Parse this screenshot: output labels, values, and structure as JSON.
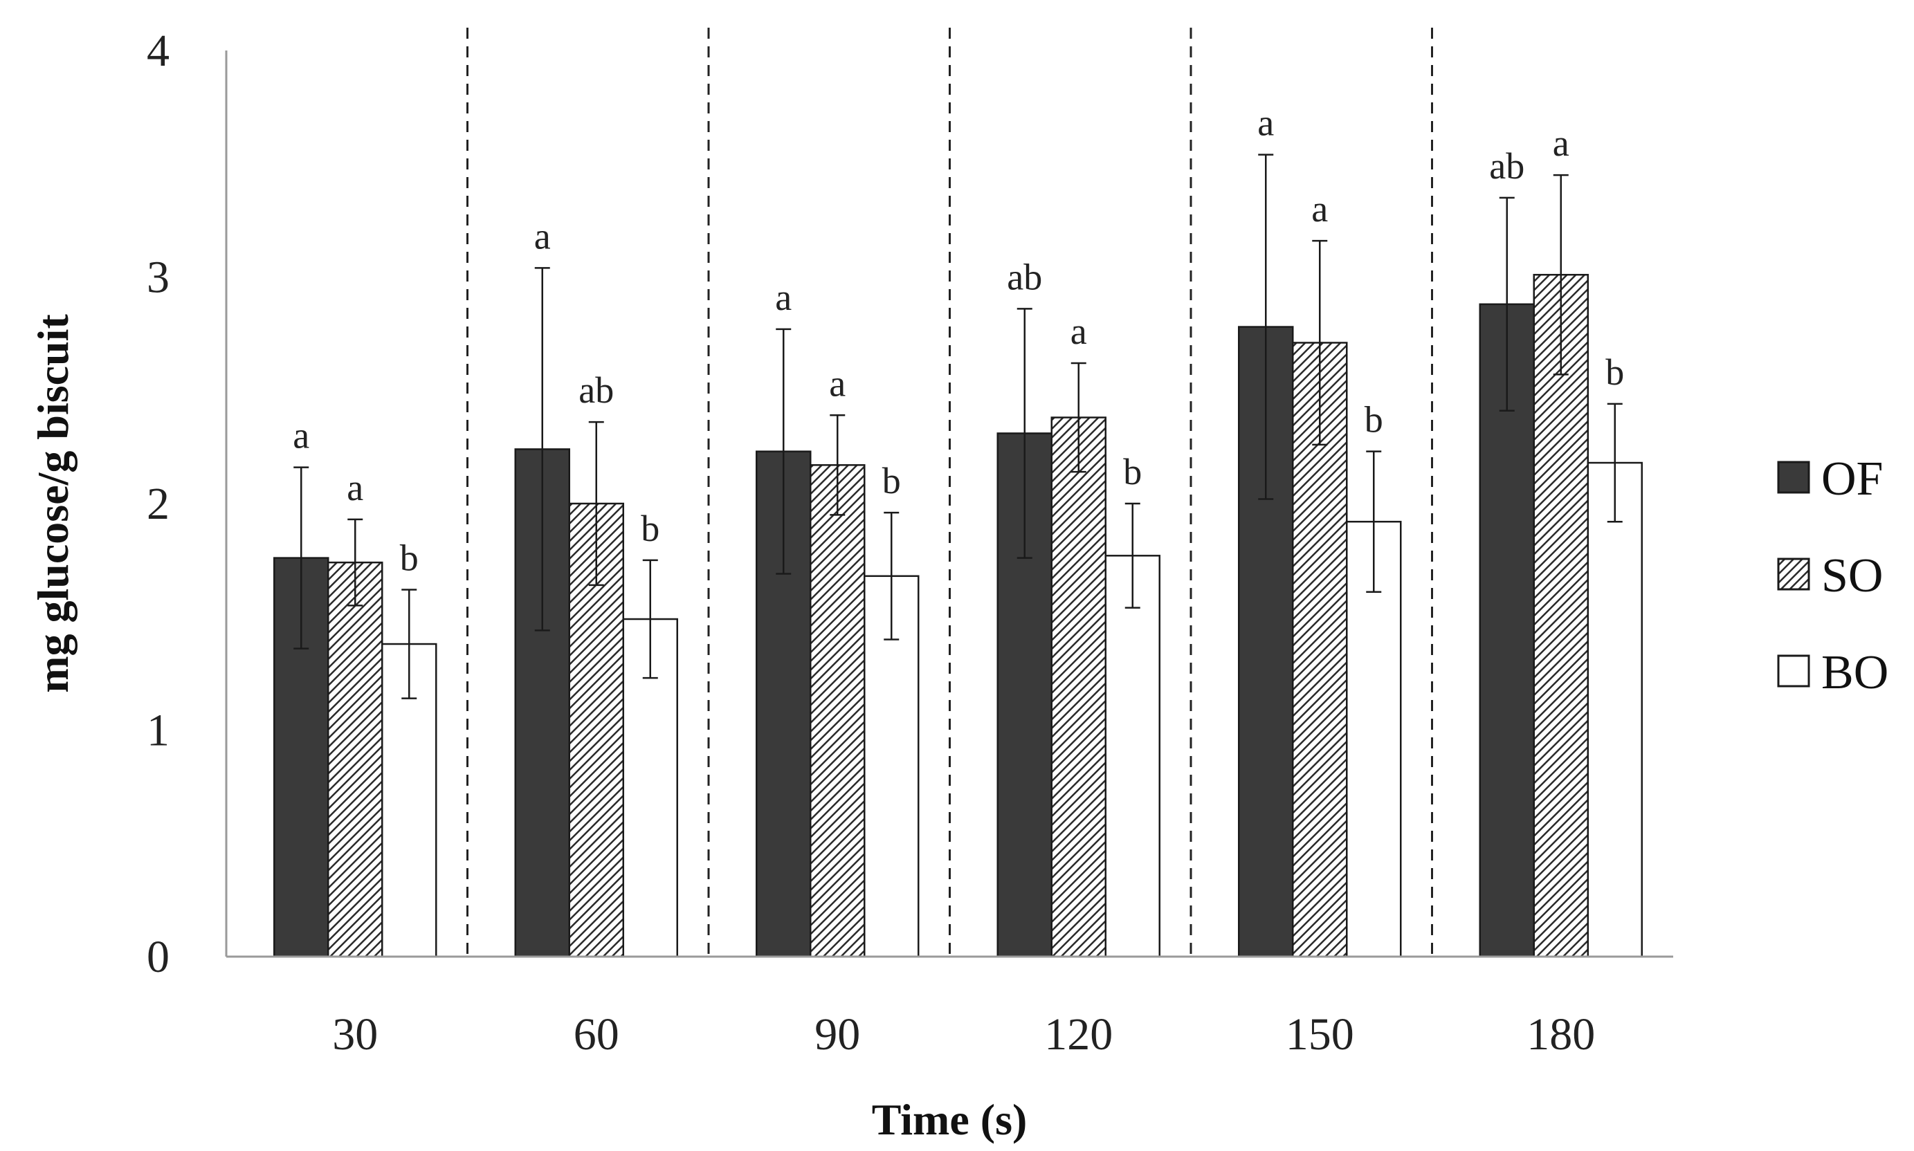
{
  "chart_data": {
    "type": "bar",
    "title": "",
    "xlabel": "Time (s)",
    "ylabel": "mg glucose/g biscuit",
    "ylim": [
      0,
      4
    ],
    "yticks": [
      "0",
      "1",
      "2",
      "3",
      "4"
    ],
    "categories": [
      "30",
      "60",
      "90",
      "120",
      "150",
      "180"
    ],
    "grid": false,
    "group_separators": "dashed",
    "legend_position": "right",
    "series": [
      {
        "name": "OF",
        "fill": "solid",
        "color": "#3a3a3a",
        "values": [
          1.76,
          2.24,
          2.23,
          2.31,
          2.78,
          2.88
        ],
        "errors": [
          0.4,
          0.8,
          0.54,
          0.55,
          0.76,
          0.47
        ],
        "labels": [
          "a",
          "a",
          "a",
          "ab",
          "a",
          "ab"
        ]
      },
      {
        "name": "SO",
        "fill": "hatched",
        "color": "#3a3a3a",
        "values": [
          1.74,
          2.0,
          2.17,
          2.38,
          2.71,
          3.01
        ],
        "errors": [
          0.19,
          0.36,
          0.22,
          0.24,
          0.45,
          0.44
        ],
        "labels": [
          "a",
          "ab",
          "a",
          "a",
          "a",
          "a"
        ]
      },
      {
        "name": "BO",
        "fill": "white",
        "color": "#ffffff",
        "values": [
          1.38,
          1.49,
          1.68,
          1.77,
          1.92,
          2.18
        ],
        "errors": [
          0.24,
          0.26,
          0.28,
          0.23,
          0.31,
          0.26
        ],
        "labels": [
          "b",
          "b",
          "b",
          "b",
          "b",
          "b"
        ]
      }
    ]
  }
}
